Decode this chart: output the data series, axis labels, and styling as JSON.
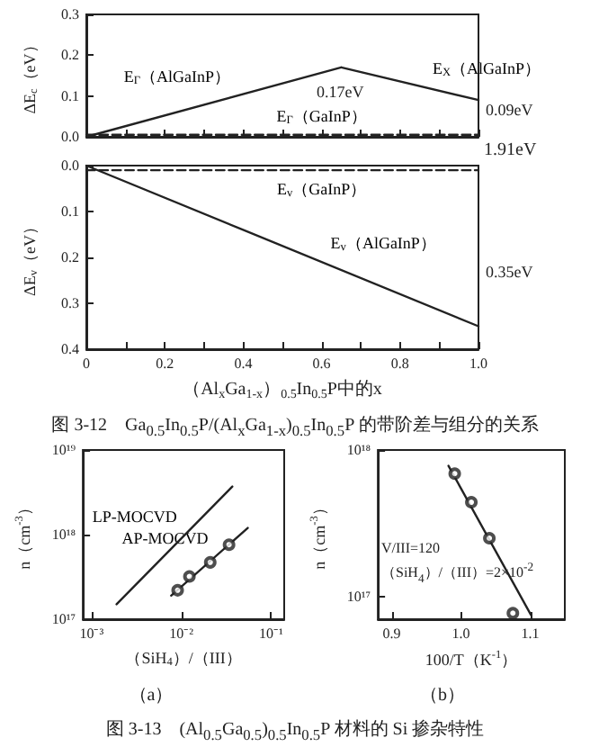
{
  "chart_data": [
    {
      "type": "line",
      "ylabel": "ΔE$_{c}$（eV）",
      "xlim": [
        0,
        1
      ],
      "ylim": [
        0,
        0.3
      ],
      "xticks": [
        0,
        0.1,
        0.2,
        0.3,
        0.4,
        0.5,
        0.6,
        0.7,
        0.8,
        0.9,
        1
      ],
      "yticks": [
        {
          "value": 0,
          "label": "0.0"
        },
        0.1,
        0.2,
        0.3
      ],
      "tick_labels": "y",
      "marker": "none",
      "line_style": "solid",
      "series": [
        {
          "name": "E$_{Γ}$（AlGaInP）",
          "color": "#222222",
          "x": [
            0,
            0.65
          ],
          "values": [
            0,
            0.17
          ]
        },
        {
          "name": "E$_{X}$（AlGaInP）",
          "color": "#222222",
          "x": [
            0.65,
            1
          ],
          "values": [
            0.17,
            0.09
          ]
        },
        {
          "name": "E$_{Γ}$（GaInP）",
          "color": "#222222",
          "x": [
            0,
            1
          ],
          "values": [
            0.005,
            0.005
          ],
          "line_style": "dashed"
        }
      ],
      "annotations": [
        "0.17eV",
        "0.09eV",
        "1.91eV"
      ]
    },
    {
      "type": "line",
      "ylabel": "ΔE$_{v}$（eV）",
      "xlabel": "（Al$_{x}$Ga$_{1-x}$）$_{0.5}$In$_{0.5}$P中的x",
      "xlim": [
        0,
        1
      ],
      "ylim": [
        0.4,
        0
      ],
      "xticks": [
        {
          "value": 0,
          "label": "0"
        },
        {
          "value": 0.1,
          "label": null
        },
        0.2,
        {
          "value": 0.3,
          "label": null
        },
        0.4,
        {
          "value": 0.5,
          "label": null
        },
        0.6,
        {
          "value": 0.7,
          "label": null
        },
        0.8,
        {
          "value": 0.9,
          "label": null
        },
        {
          "value": 1,
          "label": "1.0"
        }
      ],
      "yticks": [
        {
          "value": 0,
          "label": "0.0"
        },
        0.1,
        0.2,
        0.3,
        0.4
      ],
      "marker": "none",
      "line_style": "solid",
      "series": [
        {
          "name": "E$_{v}$（AlGaInP）",
          "color": "#222222",
          "x": [
            0,
            1
          ],
          "values": [
            0,
            0.35
          ]
        },
        {
          "name": "E$_{v}$（GaInP）",
          "color": "#222222",
          "x": [
            0,
            1
          ],
          "values": [
            0.01,
            0.01
          ],
          "line_style": "dashed"
        }
      ],
      "annotations": [
        "0.35eV",
        "图 3-12　Ga$_{0.5}$In$_{0.5}$P/(Al$_{x}$Ga$_{1-x}$)$_{0.5}$In$_{0.5}$P 的带阶差与组分的关系"
      ]
    },
    {
      "type": "line",
      "xlabel": "（SiH$_{4}$）/（III）",
      "ylabel": "n（cm$^{-3}$）",
      "log": "xy",
      "xlim": [
        0.0008,
        0.14
      ],
      "ylim": [
        1e+17,
        1e+19
      ],
      "xticks": [
        {
          "value": 0.001,
          "label": "10⁻³"
        },
        {
          "value": 0.01,
          "label": "10⁻²"
        },
        {
          "value": 0.1,
          "label": "10⁻¹"
        }
      ],
      "yticks": [
        {
          "value": 1e+17,
          "label": "10¹⁷"
        },
        {
          "value": 1e+18,
          "label": "10¹⁸"
        },
        {
          "value": 1e+19,
          "label": "10¹⁹"
        }
      ],
      "marker": "none",
      "line_style": "solid",
      "series": [
        {
          "name": "LP-MOCVD",
          "color": "#222222",
          "x": [
            0.0019,
            0.037
          ],
          "values": [
            1.5e+17,
            3.7e+18
          ]
        },
        {
          "name": "AP-MOCVD",
          "color": "#222222",
          "x": [
            0.0077,
            0.055
          ],
          "values": [
            1.9e+17,
            1.2e+18
          ]
        },
        {
          "type": "scatter",
          "marker": "circle",
          "color": "#222222",
          "x": [
            0.0091,
            0.0123,
            0.021,
            0.034
          ],
          "values": [
            2.2e+17,
            3.2e+17,
            4.7e+17,
            7.6e+17
          ]
        }
      ],
      "annotations": [
        "（a）",
        "图 3-13　(Al$_{0.5}$Ga$_{0.5}$)$_{0.5}$In$_{0.5}$P 材料的 Si 掺杂特性"
      ]
    },
    {
      "type": "line",
      "xlabel": "100/T（K$^{-1}$）",
      "ylabel": "n（cm$^{-3}$）",
      "log": "y",
      "xlim": [
        0.88,
        1.15
      ],
      "ylim": [
        7e+16,
        1e+18
      ],
      "xticks": [
        0.9,
        {
          "value": 1,
          "label": "1.0"
        },
        1.1
      ],
      "yticks": [
        {
          "value": 1e+17,
          "label": "10¹⁷"
        },
        {
          "value": 1e+18,
          "label": "10¹⁸"
        }
      ],
      "marker": "none",
      "line_style": "solid",
      "series": [
        {
          "color": "#222222",
          "x": [
            0.982,
            1.101
          ],
          "values": [
            7.8e+17,
            7.5e+16
          ]
        },
        {
          "type": "scatter",
          "marker": "circle",
          "color": "#222222",
          "x": [
            0.991,
            1.015,
            1.041,
            1.075
          ],
          "values": [
            6.9e+17,
            4.4e+17,
            2.5e+17,
            7.7e+16
          ]
        }
      ],
      "annotations": [
        "V/III=120",
        "（SiH$_{4}$）/（III）=2×10$^{-2}$",
        "（b）"
      ]
    }
  ]
}
